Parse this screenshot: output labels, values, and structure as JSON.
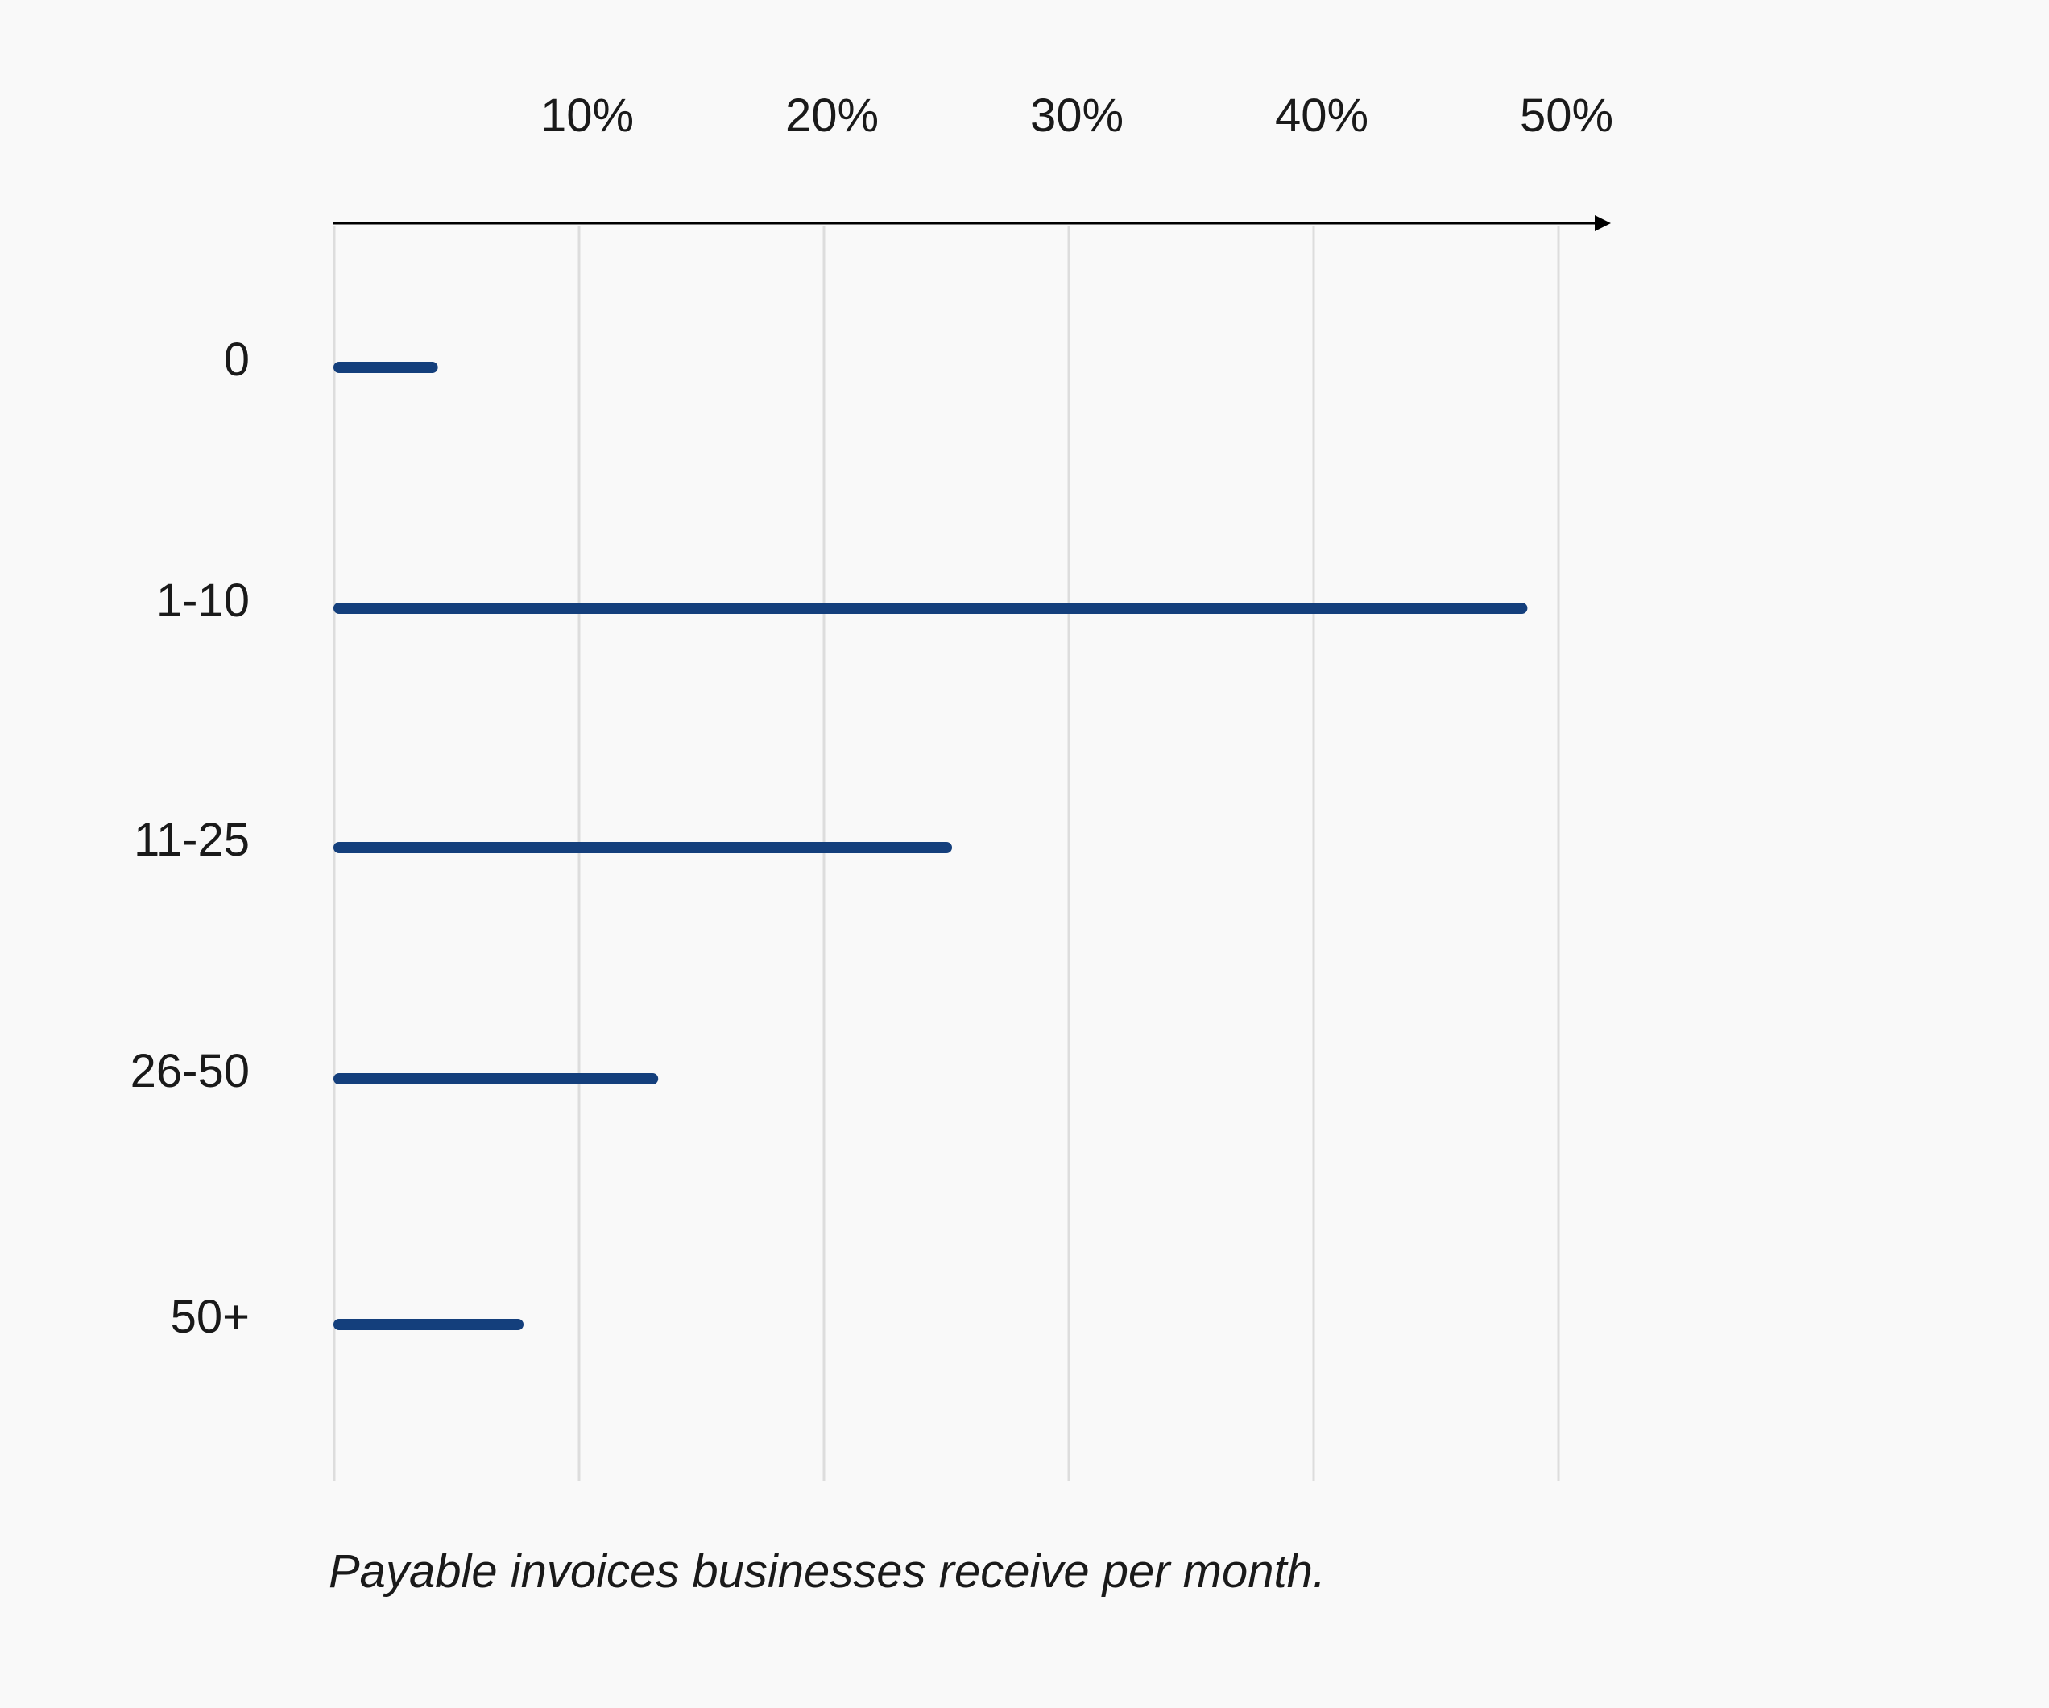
{
  "chart_data": {
    "type": "bar",
    "orientation": "horizontal",
    "categories": [
      "0",
      "1-10",
      "11-25",
      "26-50",
      "50+"
    ],
    "values": [
      4,
      48.5,
      25,
      13,
      7.5
    ],
    "x_ticks": [
      {
        "value": 10,
        "label": "10%"
      },
      {
        "value": 20,
        "label": "20%"
      },
      {
        "value": 30,
        "label": "30%"
      },
      {
        "value": 40,
        "label": "40%"
      },
      {
        "value": 50,
        "label": "50%"
      }
    ],
    "xlim": [
      0,
      52
    ],
    "xaxis_position": "top",
    "xaxis_arrow": true,
    "grid": true,
    "title": "",
    "xlabel": "",
    "ylabel": "",
    "caption": "Payable invoices businesses receive per month.",
    "colors": {
      "bar": "#143f7c",
      "grid": "#dddddd",
      "axis": "#000000",
      "background": "#f9f9f9"
    }
  }
}
